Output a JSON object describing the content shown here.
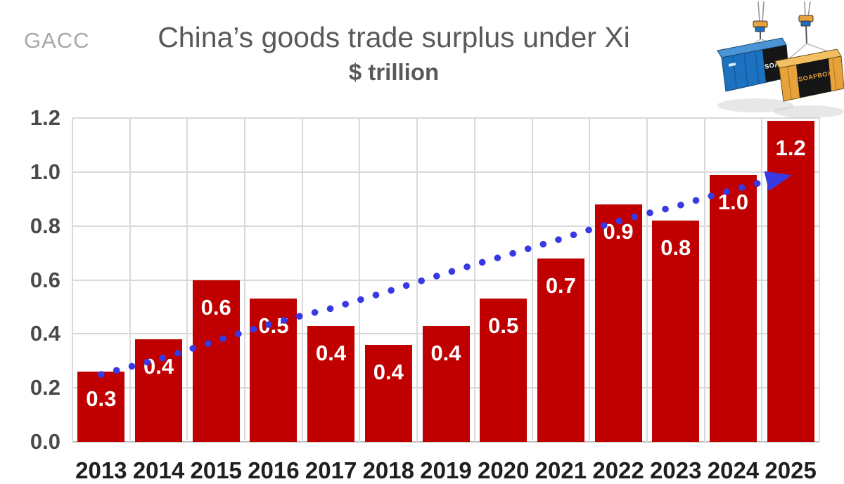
{
  "header": {
    "watermark": "GACC",
    "title": "China’s goods trade surplus under Xi",
    "subtitle": "$ trillion"
  },
  "illustration": {
    "left_container_label": "SOAPBOX",
    "right_container_label": "SOAPBOX"
  },
  "chart_data": {
    "type": "bar",
    "title": "China’s goods trade surplus under Xi",
    "ylabel": "$ trillion",
    "xlabel": "",
    "source_label": "GACC",
    "categories": [
      "2013",
      "2014",
      "2015",
      "2016",
      "2017",
      "2018",
      "2019",
      "2020",
      "2021",
      "2022",
      "2023",
      "2024",
      "2025"
    ],
    "values": [
      0.26,
      0.38,
      0.6,
      0.53,
      0.43,
      0.36,
      0.43,
      0.53,
      0.68,
      0.88,
      0.82,
      0.99,
      1.19
    ],
    "bar_labels": [
      "0.3",
      "0.4",
      "0.6",
      "0.5",
      "0.4",
      "0.4",
      "0.4",
      "0.5",
      "0.7",
      "0.9",
      "0.8",
      "1.0",
      "1.2"
    ],
    "y_ticks": [
      "0.0",
      "0.2",
      "0.4",
      "0.6",
      "0.8",
      "1.0",
      "1.2"
    ],
    "ylim": [
      0,
      1.2
    ],
    "grid": true,
    "legend": "none",
    "bar_color": "#c00000",
    "bar_label_color": "#ffffff",
    "gridline_color": "#d9d9d9",
    "trend_line": {
      "style": "dotted",
      "color": "#3939e3",
      "arrow": true,
      "points": [
        [
          0,
          0.25
        ],
        [
          0.5,
          0.278
        ],
        [
          1,
          0.306
        ],
        [
          1.5,
          0.34
        ],
        [
          2,
          0.374
        ],
        [
          2.5,
          0.408
        ],
        [
          3,
          0.44
        ],
        [
          3.5,
          0.468
        ],
        [
          4,
          0.494
        ],
        [
          4.5,
          0.526
        ],
        [
          5,
          0.558
        ],
        [
          5.5,
          0.592
        ],
        [
          6,
          0.625
        ],
        [
          6.5,
          0.657
        ],
        [
          7,
          0.688
        ],
        [
          7.5,
          0.72
        ],
        [
          8,
          0.752
        ],
        [
          8.5,
          0.786
        ],
        [
          9,
          0.818
        ],
        [
          9.5,
          0.846
        ],
        [
          10,
          0.872
        ],
        [
          10.5,
          0.904
        ],
        [
          11,
          0.934
        ],
        [
          11.5,
          0.962
        ]
      ],
      "arrow_tip": [
        12.02,
        0.988
      ]
    }
  }
}
